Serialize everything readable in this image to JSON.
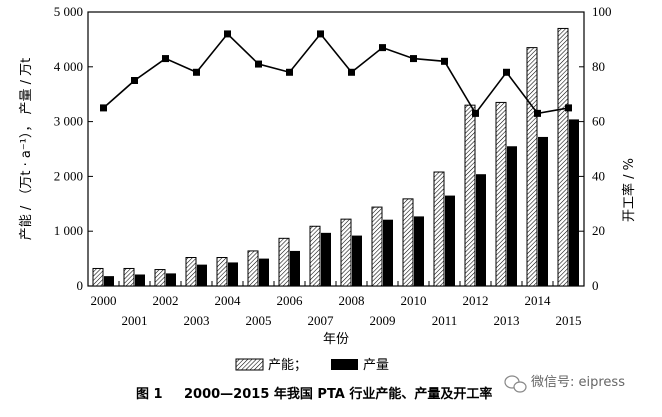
{
  "chart_data": {
    "type": "bar",
    "categories": [
      "2000",
      "2001",
      "2002",
      "2003",
      "2004",
      "2005",
      "2006",
      "2007",
      "2008",
      "2009",
      "2010",
      "2011",
      "2012",
      "2013",
      "2014",
      "2015"
    ],
    "series": [
      {
        "name": "产能",
        "kind": "bar",
        "axis": "left",
        "pattern": "hatched",
        "values": [
          320,
          320,
          300,
          520,
          520,
          640,
          870,
          1090,
          1220,
          1440,
          1590,
          2080,
          3300,
          3350,
          4350,
          4700
        ]
      },
      {
        "name": "产量",
        "kind": "bar",
        "axis": "left",
        "pattern": "solid-black",
        "values": [
          180,
          210,
          230,
          390,
          430,
          500,
          640,
          970,
          920,
          1210,
          1270,
          1650,
          2040,
          2550,
          2720,
          3040
        ]
      },
      {
        "kind": "line",
        "axis": "right",
        "marker": "square",
        "values": [
          65,
          75,
          83,
          78,
          92,
          81,
          78,
          92,
          78,
          87,
          83,
          82,
          63,
          78,
          63,
          65
        ]
      }
    ],
    "xlabel": "年份",
    "ylabel_left": "产能 / （万t · a⁻¹）， 产量 / 万t",
    "ylabel_right": "开工率 / %",
    "ylim_left": [
      0,
      5000
    ],
    "ylim_right": [
      0,
      100
    ],
    "yticks_left": [
      0,
      1000,
      2000,
      3000,
      4000,
      5000
    ],
    "ytick_labels_left": [
      "0",
      "1 000",
      "2 000",
      "3 000",
      "4 000",
      "5 000"
    ],
    "yticks_right": [
      0,
      20,
      40,
      60,
      80,
      100
    ],
    "ytick_labels_right": [
      "0",
      "20",
      "40",
      "60",
      "80",
      "100"
    ],
    "grid": false,
    "legend_position": "bottom-center"
  },
  "legend": {
    "capacity_label": "产能；",
    "output_label": "产量"
  },
  "caption": {
    "figure_no": "图 1",
    "title": "2000—2015 年我国 PTA 行业产能、产量及开工率"
  },
  "watermark": {
    "icon": "wechat-icon",
    "text": "微信号: eipress"
  }
}
